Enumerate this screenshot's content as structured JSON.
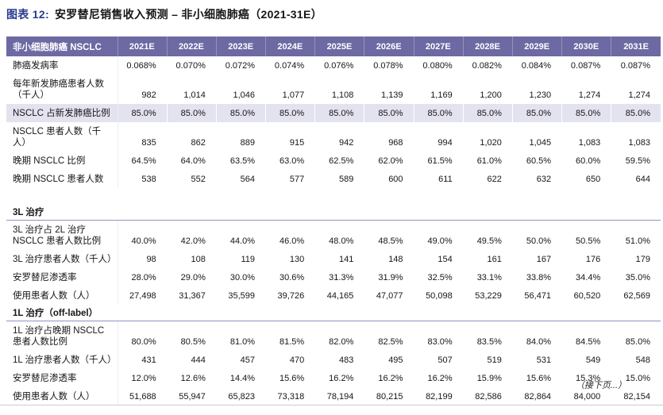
{
  "title": {
    "figure_label": "图表 12:",
    "text": "安罗替尼销售收入预测 – 非小细胞肺癌（2021-31E）"
  },
  "colors": {
    "header_bg": "#6C69A3",
    "shaded_row": "#E3E2EF",
    "title_accent": "#283C8F",
    "section_rule": "#8D94C4",
    "page_rule": "#C9CCD8"
  },
  "table": {
    "header_label": "非小细胞肺癌 NSCLC",
    "years": [
      "2021E",
      "2022E",
      "2023E",
      "2024E",
      "2025E",
      "2026E",
      "2027E",
      "2028E",
      "2029E",
      "2030E",
      "2031E"
    ],
    "sections": [
      {
        "title": null,
        "rows": [
          {
            "label": "肺癌发病率",
            "values": [
              "0.068%",
              "0.070%",
              "0.072%",
              "0.074%",
              "0.076%",
              "0.078%",
              "0.080%",
              "0.082%",
              "0.084%",
              "0.087%",
              "0.087%"
            ]
          },
          {
            "label": "每年新发肺癌患者人数（千人）",
            "values": [
              "982",
              "1,014",
              "1,046",
              "1,077",
              "1,108",
              "1,139",
              "1,169",
              "1,200",
              "1,230",
              "1,274",
              "1,274"
            ]
          },
          {
            "label": "NSCLC 占新发肺癌比例",
            "shaded": true,
            "values": [
              "85.0%",
              "85.0%",
              "85.0%",
              "85.0%",
              "85.0%",
              "85.0%",
              "85.0%",
              "85.0%",
              "85.0%",
              "85.0%",
              "85.0%"
            ]
          },
          {
            "label": "NSCLC 患者人数（千人）",
            "values": [
              "835",
              "862",
              "889",
              "915",
              "942",
              "968",
              "994",
              "1,020",
              "1,045",
              "1,083",
              "1,083"
            ]
          },
          {
            "label": "晚期 NSCLC 比例",
            "values": [
              "64.5%",
              "64.0%",
              "63.5%",
              "63.0%",
              "62.5%",
              "62.0%",
              "61.5%",
              "61.0%",
              "60.5%",
              "60.0%",
              "59.5%"
            ]
          },
          {
            "label": "晚期 NSCLC 患者人数",
            "values": [
              "538",
              "552",
              "564",
              "577",
              "589",
              "600",
              "611",
              "622",
              "632",
              "650",
              "644"
            ]
          }
        ]
      },
      {
        "title": "3L 治疗",
        "rows": [
          {
            "label": "3L 治疗占 2L 治疗 NSCLC 患者人数比例",
            "values": [
              "40.0%",
              "42.0%",
              "44.0%",
              "46.0%",
              "48.0%",
              "48.5%",
              "49.0%",
              "49.5%",
              "50.0%",
              "50.5%",
              "51.0%"
            ]
          },
          {
            "label": "3L 治疗患者人数（千人）",
            "values": [
              "98",
              "108",
              "119",
              "130",
              "141",
              "148",
              "154",
              "161",
              "167",
              "176",
              "179"
            ]
          },
          {
            "label": "安罗替尼渗透率",
            "values": [
              "28.0%",
              "29.0%",
              "30.0%",
              "30.6%",
              "31.3%",
              "31.9%",
              "32.5%",
              "33.1%",
              "33.8%",
              "34.4%",
              "35.0%"
            ]
          },
          {
            "label": "使用患者人数（人）",
            "values": [
              "27,498",
              "31,367",
              "35,599",
              "39,726",
              "44,165",
              "47,077",
              "50,098",
              "53,229",
              "56,471",
              "60,520",
              "62,569"
            ]
          }
        ]
      },
      {
        "title": "1L 治疗（off-label）",
        "rows": [
          {
            "label": "1L 治疗占晚期 NSCLC 患者人数比例",
            "values": [
              "80.0%",
              "80.5%",
              "81.0%",
              "81.5%",
              "82.0%",
              "82.5%",
              "83.0%",
              "83.5%",
              "84.0%",
              "84.5%",
              "85.0%"
            ]
          },
          {
            "label": "1L 治疗患者人数（千人）",
            "values": [
              "431",
              "444",
              "457",
              "470",
              "483",
              "495",
              "507",
              "519",
              "531",
              "549",
              "548"
            ]
          },
          {
            "label": "安罗替尼渗透率",
            "values": [
              "12.0%",
              "12.6%",
              "14.4%",
              "15.6%",
              "16.2%",
              "16.2%",
              "16.2%",
              "15.9%",
              "15.6%",
              "15.3%",
              "15.0%"
            ]
          },
          {
            "label": "使用患者人数（人）",
            "values": [
              "51,688",
              "55,947",
              "65,823",
              "73,318",
              "78,194",
              "80,215",
              "82,199",
              "82,586",
              "82,864",
              "84,000",
              "82,154"
            ]
          }
        ]
      }
    ]
  },
  "footer": {
    "note": "（接下页...）"
  }
}
